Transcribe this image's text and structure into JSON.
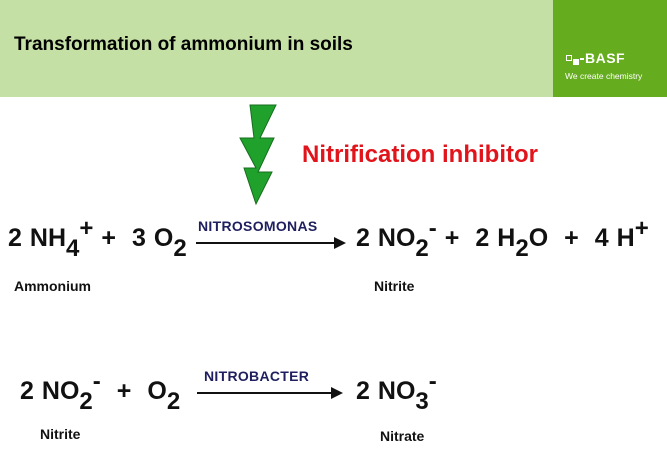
{
  "header": {
    "title": "Transformation of ammonium in soils",
    "logo": {
      "name": "BASF",
      "tagline": "We create chemistry"
    }
  },
  "inhibitor": {
    "label": "Nitrification inhibitor",
    "color": "#e1141b",
    "icon": "lightning-bolt-icon"
  },
  "reaction1": {
    "enzyme": "NITROSOMONAS",
    "left": {
      "coef1": "2",
      "sp1": "NH",
      "sub1": "4",
      "sup1": "+",
      "plus": "+",
      "coef2": "3",
      "sp2": "O",
      "sub2": "2"
    },
    "right": {
      "coef1": "2",
      "sp1": "NO",
      "sub1": "2",
      "sup1": "-",
      "plus1": "+",
      "coef2": "2",
      "sp2a": "H",
      "sub2": "2",
      "sp2b": "O",
      "plus2": "+",
      "coef3": "4",
      "sp3": "H",
      "sup3": "+"
    },
    "reactant_name": "Ammonium",
    "product_name": "Nitrite"
  },
  "reaction2": {
    "enzyme": "NITROBACTER",
    "left": {
      "coef1": "2",
      "sp1": "NO",
      "sub1": "2",
      "sup1": "-",
      "plus": "+",
      "sp2": "O",
      "sub2": "2"
    },
    "right": {
      "coef1": "2",
      "sp1": "NO",
      "sub1": "3",
      "sup1": "-"
    },
    "reactant_name": "Nitrite",
    "product_name": "Nitrate"
  },
  "colors": {
    "header_bg": "#c5e0a5",
    "logo_bg": "#65ac1e",
    "bolt": "#1fa12c",
    "enzyme": "#1f1f5f"
  }
}
